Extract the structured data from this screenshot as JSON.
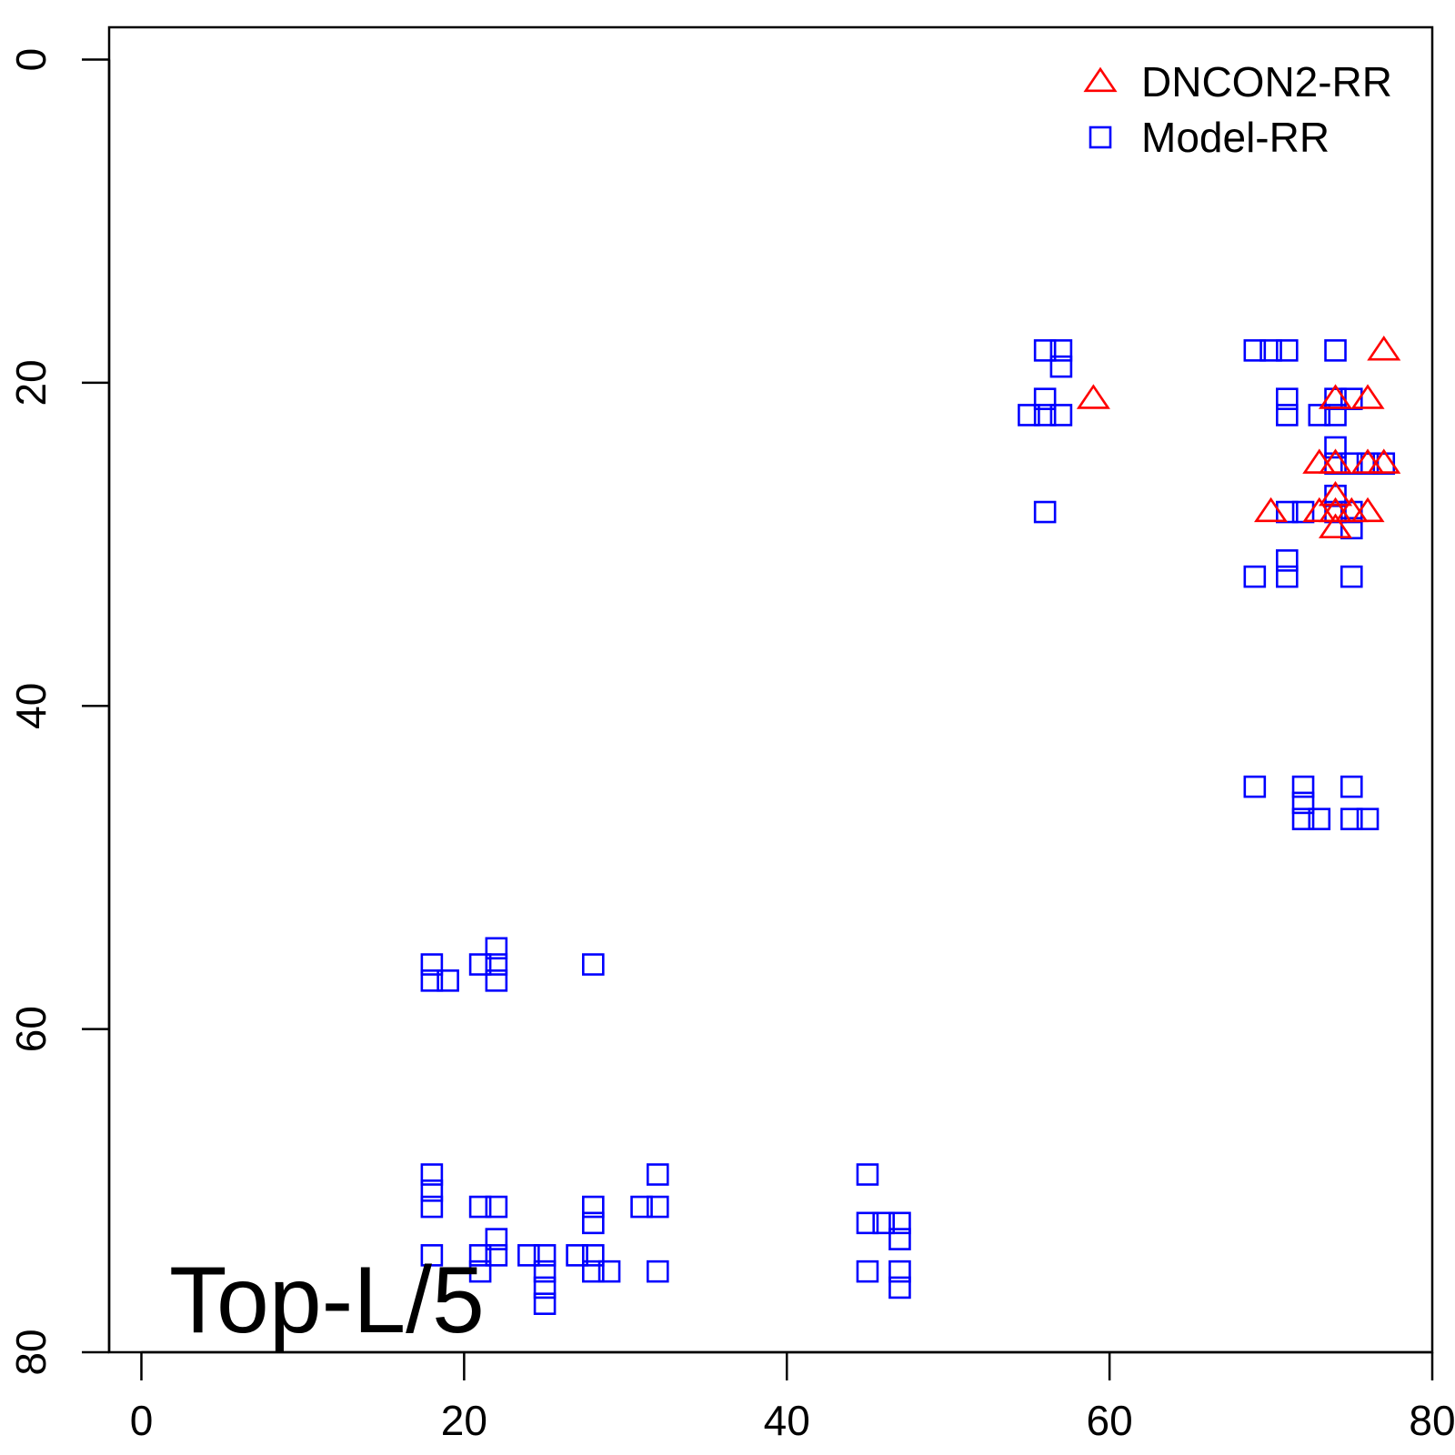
{
  "chart_data": {
    "type": "scatter",
    "title": "",
    "xlabel": "",
    "ylabel": "",
    "xlim": [
      -2,
      80
    ],
    "ylim": [
      80,
      -2
    ],
    "y_reversed": true,
    "x_ticks": [
      "0",
      "20",
      "40",
      "60",
      "80"
    ],
    "y_ticks": [
      "0",
      "20",
      "40",
      "60",
      "80"
    ],
    "x_tick_values": [
      0,
      20,
      40,
      60,
      80
    ],
    "y_tick_values": [
      0,
      20,
      40,
      60,
      80
    ],
    "grid": false,
    "legend_position": "top-right",
    "annotation": "Top-L/5",
    "series": [
      {
        "name": "DNCON2-RR",
        "marker": "triangle",
        "color": "#ff0000",
        "points": [
          [
            77,
            18
          ],
          [
            59,
            21
          ],
          [
            74,
            21
          ],
          [
            76,
            21
          ],
          [
            73,
            25
          ],
          [
            74,
            25
          ],
          [
            76,
            25
          ],
          [
            77,
            25
          ],
          [
            74,
            27
          ],
          [
            70,
            28
          ],
          [
            73,
            28
          ],
          [
            74,
            28
          ],
          [
            75,
            28
          ],
          [
            76,
            28
          ],
          [
            74,
            29
          ]
        ]
      },
      {
        "name": "Model-RR",
        "marker": "square",
        "color": "#0000ff",
        "points": [
          [
            56,
            18
          ],
          [
            57,
            18
          ],
          [
            57,
            19
          ],
          [
            56,
            21
          ],
          [
            55,
            22
          ],
          [
            56,
            22
          ],
          [
            57,
            22
          ],
          [
            56,
            28
          ],
          [
            69,
            18
          ],
          [
            70,
            18
          ],
          [
            71,
            18
          ],
          [
            74,
            18
          ],
          [
            71,
            21
          ],
          [
            74,
            21
          ],
          [
            75,
            21
          ],
          [
            71,
            22
          ],
          [
            73,
            22
          ],
          [
            74,
            22
          ],
          [
            74,
            24
          ],
          [
            74,
            25
          ],
          [
            75,
            25
          ],
          [
            76,
            25
          ],
          [
            77,
            25
          ],
          [
            74,
            27
          ],
          [
            71,
            28
          ],
          [
            72,
            28
          ],
          [
            74,
            28
          ],
          [
            75,
            28
          ],
          [
            75,
            29
          ],
          [
            71,
            31
          ],
          [
            69,
            32
          ],
          [
            71,
            32
          ],
          [
            75,
            32
          ],
          [
            69,
            45
          ],
          [
            72,
            45
          ],
          [
            75,
            45
          ],
          [
            72,
            46
          ],
          [
            72,
            47
          ],
          [
            73,
            47
          ],
          [
            75,
            47
          ],
          [
            76,
            47
          ],
          [
            18,
            56
          ],
          [
            21,
            56
          ],
          [
            22,
            55
          ],
          [
            22,
            56
          ],
          [
            28,
            56
          ],
          [
            18,
            57
          ],
          [
            19,
            57
          ],
          [
            22,
            57
          ],
          [
            18,
            69
          ],
          [
            18,
            70
          ],
          [
            18,
            71
          ],
          [
            32,
            69
          ],
          [
            21,
            71
          ],
          [
            22,
            71
          ],
          [
            28,
            71
          ],
          [
            31,
            71
          ],
          [
            32,
            71
          ],
          [
            28,
            72
          ],
          [
            22,
            73
          ],
          [
            18,
            74
          ],
          [
            21,
            74
          ],
          [
            22,
            74
          ],
          [
            24,
            74
          ],
          [
            25,
            74
          ],
          [
            27,
            74
          ],
          [
            28,
            74
          ],
          [
            21,
            75
          ],
          [
            25,
            75
          ],
          [
            28,
            75
          ],
          [
            29,
            75
          ],
          [
            32,
            75
          ],
          [
            25,
            76
          ],
          [
            25,
            77
          ],
          [
            45,
            69
          ],
          [
            45,
            72
          ],
          [
            46,
            72
          ],
          [
            47,
            72
          ],
          [
            47,
            73
          ],
          [
            45,
            75
          ],
          [
            47,
            75
          ],
          [
            47,
            76
          ]
        ]
      }
    ]
  }
}
